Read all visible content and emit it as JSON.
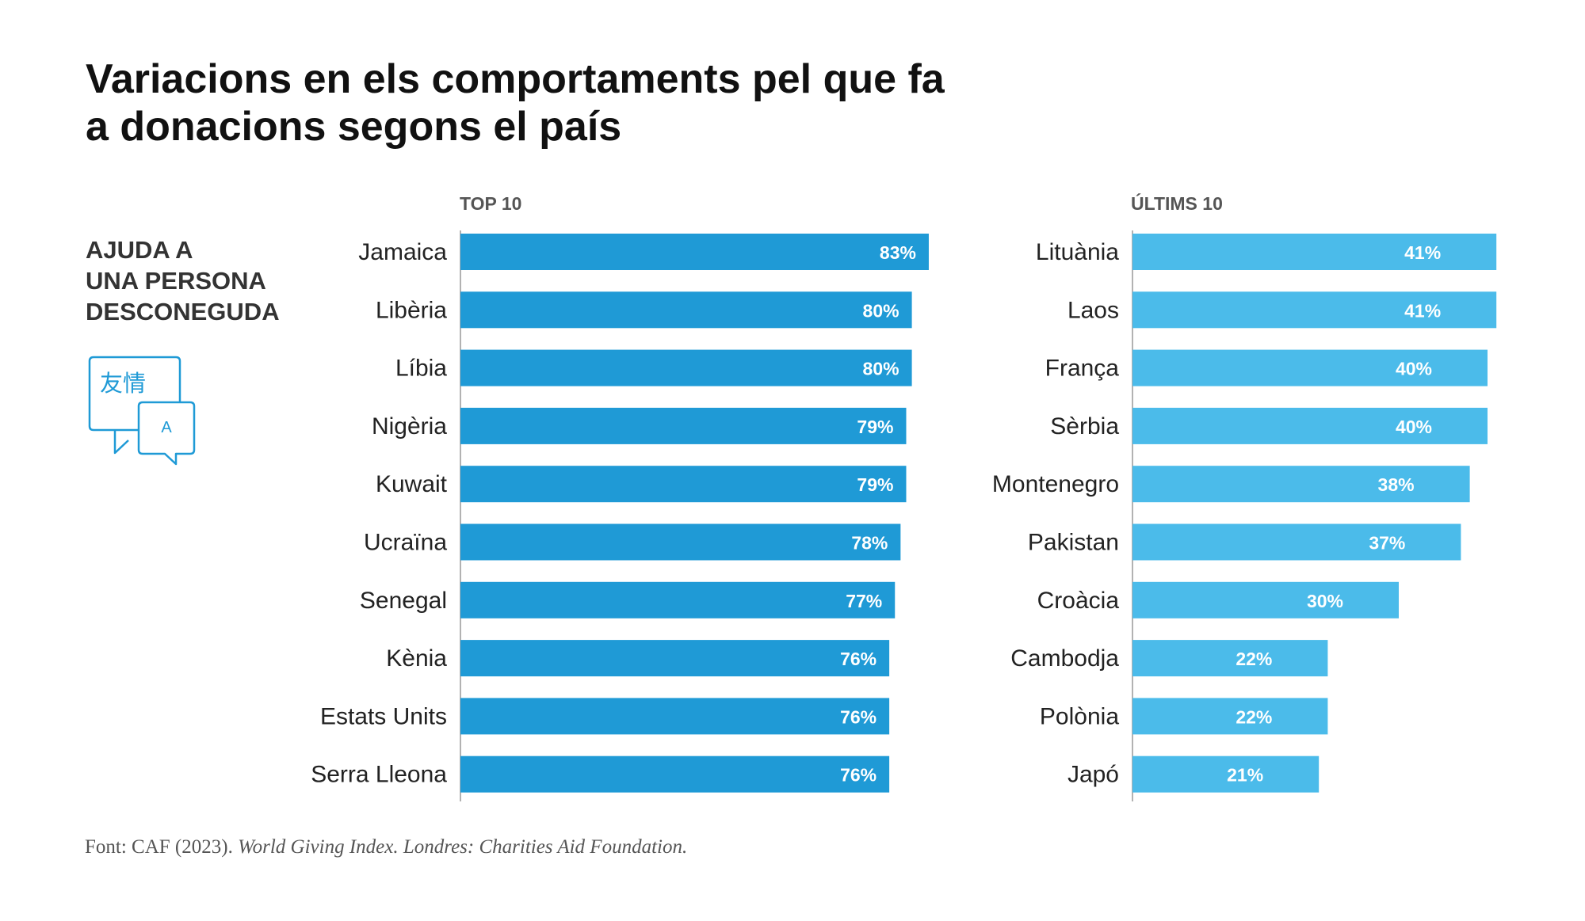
{
  "title_lines": [
    "Variacions en els comportaments pel que fa",
    "a donacions segons el país"
  ],
  "section_lines": [
    "AJUDA A",
    "UNA PERSONA",
    "DESCONEGUDA"
  ],
  "icon": {
    "name": "translate-chat-bubbles-icon",
    "glyph_cjk": "友情",
    "glyph_latin": "A",
    "color": "#1f9ad6"
  },
  "footer": {
    "prefix": "Font: CAF (2023). ",
    "italic": "World Giving Index. Londres: Charities Aid Foundation."
  },
  "chart_data": [
    {
      "type": "bar",
      "orientation": "horizontal",
      "title": "TOP 10",
      "color": "#1f9ad6",
      "categories": [
        "Jamaica",
        "Libèria",
        "Líbia",
        "Nigèria",
        "Kuwait",
        "Ucraïna",
        "Senegal",
        "Kènia",
        "Estats Units",
        "Serra Lleona"
      ],
      "values": [
        83,
        80,
        80,
        79,
        79,
        78,
        77,
        76,
        76,
        76
      ],
      "labels": [
        "83%",
        "80%",
        "80%",
        "79%",
        "79%",
        "78%",
        "77%",
        "76%",
        "76%",
        "76%"
      ],
      "unit": "%"
    },
    {
      "type": "bar",
      "orientation": "horizontal",
      "title": "ÚLTIMS 10",
      "color": "#4bbbea",
      "categories": [
        "Lituània",
        "Laos",
        "França",
        "Sèrbia",
        "Montenegro",
        "Pakistan",
        "Croàcia",
        "Cambodja",
        "Polònia",
        "Japó"
      ],
      "values": [
        41,
        41,
        40,
        40,
        38,
        37,
        30,
        22,
        22,
        21
      ],
      "labels": [
        "41%",
        "41%",
        "40%",
        "40%",
        "38%",
        "37%",
        "30%",
        "22%",
        "22%",
        "21%"
      ],
      "unit": "%"
    }
  ]
}
